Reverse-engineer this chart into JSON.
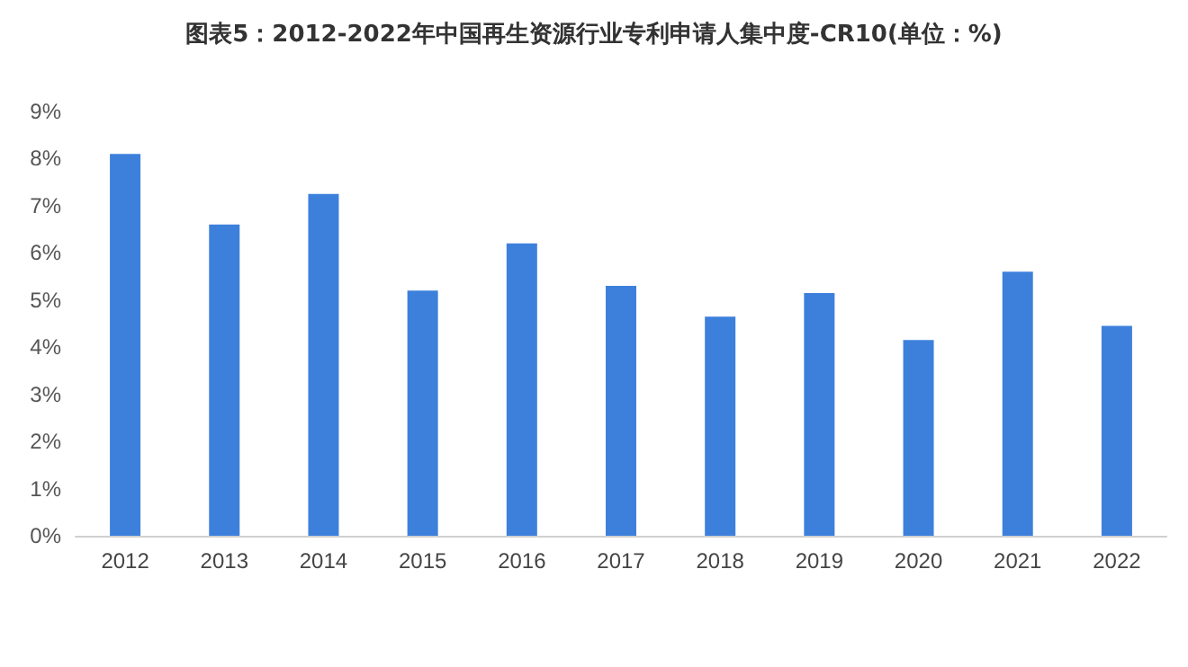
{
  "chart_data": {
    "type": "bar",
    "title": "图表5：2012-2022年中国再生资源行业专利申请人集中度-CR10(单位：%)",
    "categories": [
      "2012",
      "2013",
      "2014",
      "2015",
      "2016",
      "2017",
      "2018",
      "2019",
      "2020",
      "2021",
      "2022"
    ],
    "values": [
      8.1,
      6.6,
      7.25,
      5.2,
      6.2,
      5.3,
      4.65,
      5.15,
      4.15,
      5.6,
      4.45
    ],
    "color": "#3d80dc",
    "ylim": [
      0,
      9
    ],
    "yticks": [
      {
        "value": 0,
        "label": "0%"
      },
      {
        "value": 1,
        "label": "1%"
      },
      {
        "value": 2,
        "label": "2%"
      },
      {
        "value": 3,
        "label": "3%"
      },
      {
        "value": 4,
        "label": "4%"
      },
      {
        "value": 5,
        "label": "5%"
      },
      {
        "value": 6,
        "label": "6%"
      },
      {
        "value": 7,
        "label": "7%"
      },
      {
        "value": 8,
        "label": "8%"
      },
      {
        "value": 9,
        "label": "9%"
      }
    ],
    "grid": false,
    "legend": false
  }
}
